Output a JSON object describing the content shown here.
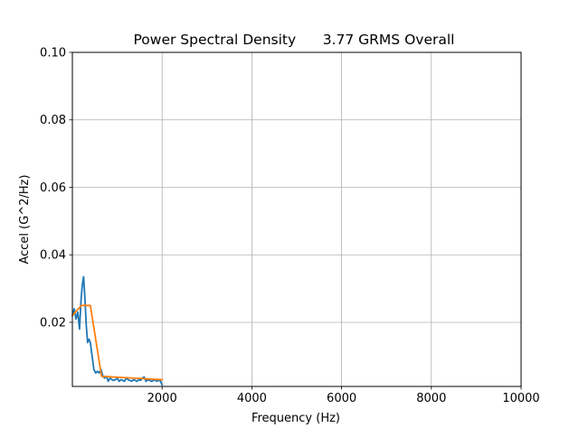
{
  "chart_data": {
    "type": "line",
    "title": "Power Spectral Density      3.77 GRMS Overall",
    "xlabel": "Frequency (Hz)",
    "ylabel": "Accel (G^2/Hz)",
    "xlim": [
      0,
      10000
    ],
    "ylim": [
      0.001,
      0.1
    ],
    "grid": true,
    "x_ticks": [
      {
        "value": 2000,
        "label": "2000"
      },
      {
        "value": 4000,
        "label": "4000"
      },
      {
        "value": 6000,
        "label": "6000"
      },
      {
        "value": 8000,
        "label": "8000"
      },
      {
        "value": 10000,
        "label": "10000"
      }
    ],
    "y_ticks": [
      {
        "value": 0.02,
        "label": "0.02"
      },
      {
        "value": 0.04,
        "label": "0.04"
      },
      {
        "value": 0.06,
        "label": "0.06"
      },
      {
        "value": 0.08,
        "label": "0.08"
      },
      {
        "value": 0.1,
        "label": "0.10"
      }
    ],
    "series": [
      {
        "color": "#1f77b4",
        "x": [
          0,
          40,
          80,
          120,
          160,
          190,
          220,
          250,
          280,
          310,
          340,
          370,
          400,
          440,
          480,
          520,
          560,
          600,
          640,
          680,
          720,
          760,
          800,
          840,
          880,
          920,
          960,
          1000,
          1040,
          1080,
          1120,
          1160,
          1200,
          1240,
          1280,
          1320,
          1360,
          1400,
          1440,
          1480,
          1520,
          1560,
          1600,
          1640,
          1680,
          1720,
          1760,
          1800,
          1840,
          1880,
          1920,
          1960,
          2000
        ],
        "y": [
          0.022,
          0.024,
          0.021,
          0.023,
          0.018,
          0.026,
          0.031,
          0.0335,
          0.027,
          0.019,
          0.014,
          0.015,
          0.014,
          0.01,
          0.006,
          0.005,
          0.0055,
          0.005,
          0.006,
          0.004,
          0.0035,
          0.004,
          0.0025,
          0.0035,
          0.003,
          0.0028,
          0.003,
          0.0035,
          0.0025,
          0.003,
          0.0028,
          0.0025,
          0.0035,
          0.003,
          0.0028,
          0.0025,
          0.003,
          0.0028,
          0.0025,
          0.003,
          0.0028,
          0.0035,
          0.0038,
          0.0025,
          0.003,
          0.0028,
          0.0025,
          0.0027,
          0.003,
          0.0025,
          0.0028,
          0.0026,
          0.0015
        ]
      },
      {
        "color": "#ff7f0e",
        "x": [
          0,
          200,
          400,
          650,
          2000
        ],
        "y": [
          0.022,
          0.025,
          0.025,
          0.004,
          0.003
        ]
      }
    ]
  }
}
